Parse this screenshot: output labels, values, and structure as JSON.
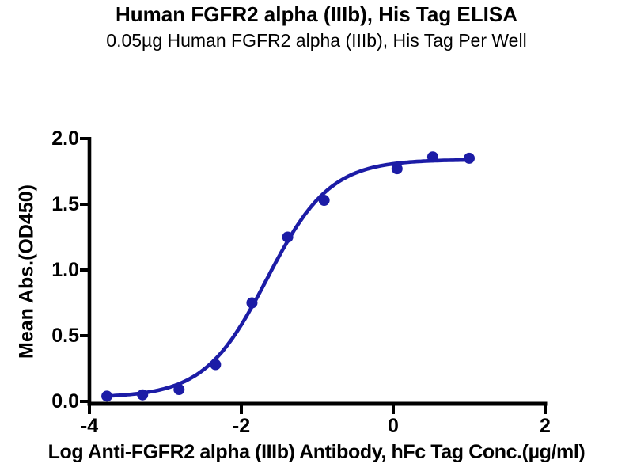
{
  "chart_data": {
    "type": "scatter",
    "title": "Human FGFR2 alpha (IIIb), His Tag ELISA",
    "subtitle": "0.05µg Human FGFR2 alpha (IIIb), His Tag Per Well",
    "xlabel": "Log Anti-FGFR2 alpha (IIIb) Antibody, hFc Tag Conc.(µg/ml)",
    "ylabel": "Mean Abs.(OD450)",
    "xlim": [
      -4,
      2
    ],
    "ylim": [
      0.0,
      2.0
    ],
    "xticks": [
      -4,
      -2,
      0,
      2
    ],
    "xtick_labels": [
      "-4",
      "-2",
      "0",
      "2"
    ],
    "yticks": [
      0.0,
      0.5,
      1.0,
      1.5,
      2.0
    ],
    "ytick_labels": [
      "0.0",
      "0.5",
      "1.0",
      "1.5",
      "2.0"
    ],
    "grid": false,
    "legend": "none",
    "axis_color": "#000000",
    "series": [
      {
        "marker": "circle",
        "color": "#1C1CA6",
        "x": [
          -3.77,
          -3.3,
          -2.82,
          -2.34,
          -1.86,
          -1.39,
          -0.91,
          0.05,
          0.52,
          1.0
        ],
        "y": [
          0.04,
          0.05,
          0.09,
          0.28,
          0.75,
          1.25,
          1.53,
          1.77,
          1.86,
          1.85
        ]
      }
    ],
    "fit_curve": {
      "model": "4PL sigmoid",
      "bottom": 0.03,
      "top": 1.84,
      "log_ec50": -1.66,
      "hill_slope": 1.05,
      "x_start": -3.77,
      "x_end": 1.0,
      "color": "#1C1CA6"
    }
  }
}
